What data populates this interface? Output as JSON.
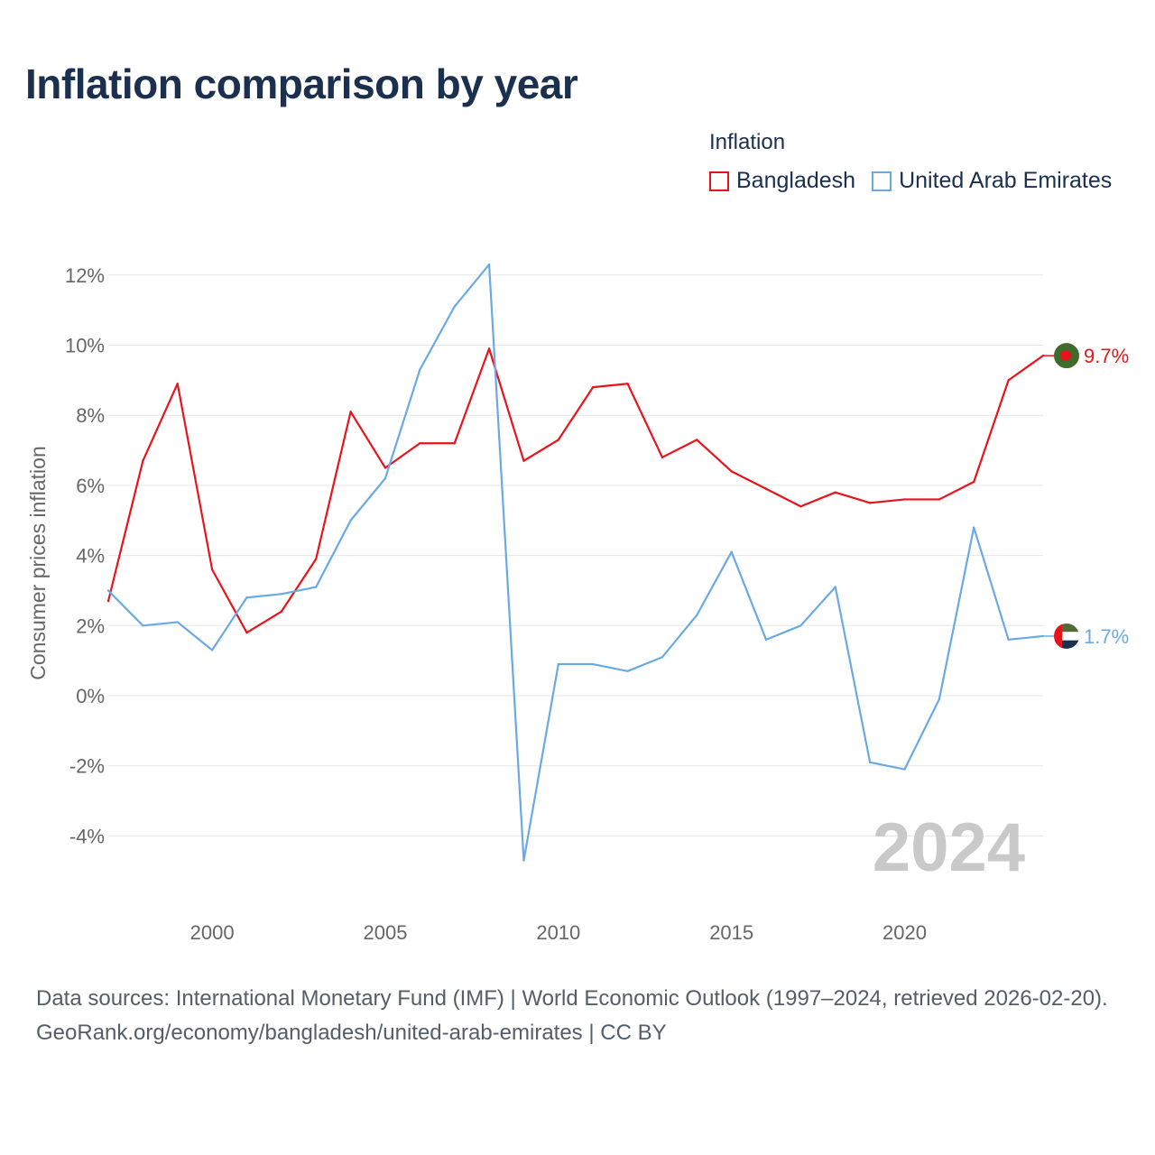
{
  "title": "Inflation comparison by year",
  "legend": {
    "title": "Inflation",
    "items": [
      {
        "name": "Bangladesh",
        "color": "#e8141c"
      },
      {
        "name": "United Arab Emirates",
        "color": "#6aaae4"
      }
    ]
  },
  "chart_data": {
    "type": "line",
    "title": "Inflation comparison by year",
    "xlabel": "",
    "ylabel": "Consumer prices inflation",
    "x": [
      1997,
      1998,
      1999,
      2000,
      2001,
      2002,
      2003,
      2004,
      2005,
      2006,
      2007,
      2008,
      2009,
      2010,
      2011,
      2012,
      2013,
      2014,
      2015,
      2016,
      2017,
      2018,
      2019,
      2020,
      2021,
      2022,
      2023,
      2024
    ],
    "xlim": [
      1997,
      2024
    ],
    "x_ticks": [
      2000,
      2005,
      2010,
      2015,
      2020
    ],
    "ylim": [
      -5.5,
      13
    ],
    "y_ticks": [
      -4,
      -2,
      0,
      2,
      4,
      6,
      8,
      10,
      12
    ],
    "y_tick_suffix": "%",
    "grid": true,
    "series": [
      {
        "name": "Bangladesh",
        "color": "#e8141c",
        "values": [
          2.7,
          6.7,
          8.9,
          3.6,
          1.8,
          2.4,
          3.9,
          8.1,
          6.5,
          7.2,
          7.2,
          9.9,
          6.7,
          7.3,
          8.8,
          8.9,
          6.8,
          7.3,
          6.4,
          5.9,
          5.4,
          5.8,
          5.5,
          5.6,
          5.6,
          6.1,
          9.0,
          9.7
        ],
        "end_label": "9.7%"
      },
      {
        "name": "United Arab Emirates",
        "color": "#6aaae4",
        "values": [
          3.0,
          2.0,
          2.1,
          1.3,
          2.8,
          2.9,
          3.1,
          5.0,
          6.2,
          9.3,
          11.1,
          12.3,
          -4.7,
          0.9,
          0.9,
          0.7,
          1.1,
          2.3,
          4.1,
          1.6,
          2.0,
          3.1,
          -1.9,
          -2.1,
          -0.1,
          4.8,
          1.6,
          1.7
        ],
        "end_label": "1.7%"
      }
    ],
    "year_label": "2024"
  },
  "footer": {
    "source": "Data sources: International Monetary Fund (IMF) | World Economic Outlook (1997–2024, retrieved 2026-02-20).",
    "link": "GeoRank.org/economy/bangladesh/united-arab-emirates | CC BY"
  }
}
